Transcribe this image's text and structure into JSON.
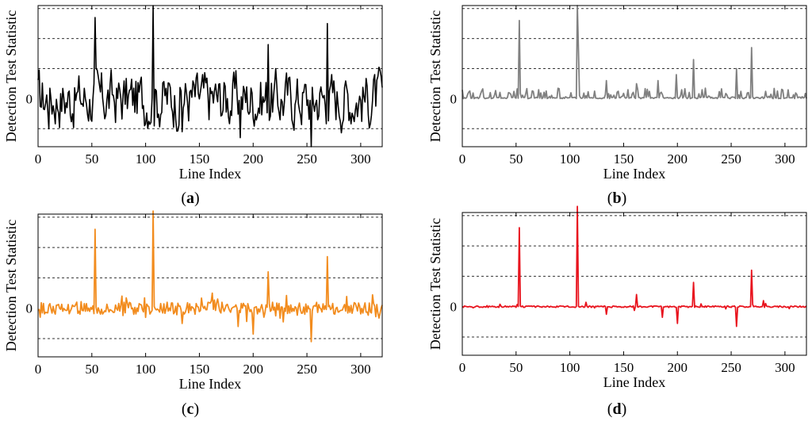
{
  "figure": {
    "panel_labels": [
      "a",
      "b",
      "c",
      "d"
    ],
    "paren_open": "(",
    "paren_close": ")"
  },
  "chart_data": [
    {
      "type": "line",
      "panel": "a",
      "color": "#000000",
      "xlabel": "Line Index",
      "ylabel": "Detection Test Statistic",
      "xlim": [
        0,
        320
      ],
      "xticks": [
        0,
        50,
        100,
        150,
        200,
        250,
        300
      ],
      "ylim": [
        -1.6,
        3.1
      ],
      "yticks": [
        0
      ],
      "ytick_labels": [
        "0"
      ],
      "dashed_levels": [
        -1,
        1,
        2,
        3
      ],
      "series_mode": "noisy",
      "spikes": [
        {
          "x": 53,
          "y": 2.7
        },
        {
          "x": 107,
          "y": 3.1
        },
        {
          "x": 214,
          "y": 1.8
        },
        {
          "x": 254,
          "y": -1.6
        },
        {
          "x": 269,
          "y": 2.5
        },
        {
          "x": 134,
          "y": -1.1
        },
        {
          "x": 188,
          "y": -1.3
        },
        {
          "x": 10,
          "y": -1.0
        }
      ]
    },
    {
      "type": "line",
      "panel": "b",
      "color": "#808080",
      "xlabel": "Line Index",
      "ylabel": "Detection Test Statistic",
      "xlim": [
        0,
        320
      ],
      "xticks": [
        0,
        50,
        100,
        150,
        200,
        250,
        300
      ],
      "ylim": [
        -1.6,
        3.1
      ],
      "yticks": [
        0
      ],
      "ytick_labels": [
        "0"
      ],
      "dashed_levels": [
        -1,
        1,
        2,
        3
      ],
      "series_mode": "positive",
      "spikes": [
        {
          "x": 53,
          "y": 2.6
        },
        {
          "x": 107,
          "y": 3.1
        },
        {
          "x": 108,
          "y": 1.6
        },
        {
          "x": 215,
          "y": 1.3
        },
        {
          "x": 199,
          "y": 0.8
        },
        {
          "x": 269,
          "y": 1.7
        },
        {
          "x": 255,
          "y": 1.0
        },
        {
          "x": 182,
          "y": 0.6
        },
        {
          "x": 134,
          "y": 0.6
        },
        {
          "x": 162,
          "y": 0.5
        }
      ]
    },
    {
      "type": "line",
      "panel": "c",
      "color": "#f28c1e",
      "xlabel": "Line Index",
      "ylabel": "Detection Test Statistic",
      "xlim": [
        0,
        320
      ],
      "xticks": [
        0,
        50,
        100,
        150,
        200,
        250,
        300
      ],
      "ylim": [
        -1.6,
        3.1
      ],
      "yticks": [
        0
      ],
      "ytick_labels": [
        "0"
      ],
      "dashed_levels": [
        -1,
        1,
        2,
        3
      ],
      "series_mode": "small",
      "spikes": [
        {
          "x": 53,
          "y": 2.6
        },
        {
          "x": 107,
          "y": 3.2
        },
        {
          "x": 214,
          "y": 1.2
        },
        {
          "x": 269,
          "y": 1.7
        },
        {
          "x": 254,
          "y": -1.1
        },
        {
          "x": 200,
          "y": -0.85
        },
        {
          "x": 186,
          "y": -0.6
        },
        {
          "x": 134,
          "y": -0.5
        },
        {
          "x": 162,
          "y": 0.5
        },
        {
          "x": 78,
          "y": 0.4
        }
      ]
    },
    {
      "type": "line",
      "panel": "d",
      "color": "#e8141e",
      "xlabel": "Line Index",
      "ylabel": "Detection Test Statistic",
      "xlim": [
        0,
        320
      ],
      "xticks": [
        0,
        50,
        100,
        150,
        200,
        250,
        300
      ],
      "ylim": [
        -1.6,
        3.1
      ],
      "yticks": [
        0
      ],
      "ytick_labels": [
        "0"
      ],
      "dashed_levels": [
        -1,
        1,
        2,
        3
      ],
      "series_mode": "flat",
      "spikes": [
        {
          "x": 53,
          "y": 2.6
        },
        {
          "x": 107,
          "y": 3.3
        },
        {
          "x": 215,
          "y": 0.8
        },
        {
          "x": 269,
          "y": 1.2
        },
        {
          "x": 162,
          "y": 0.4
        },
        {
          "x": 255,
          "y": -0.65
        },
        {
          "x": 200,
          "y": -0.55
        },
        {
          "x": 186,
          "y": -0.35
        },
        {
          "x": 134,
          "y": -0.25
        },
        {
          "x": 280,
          "y": 0.2
        }
      ]
    }
  ]
}
